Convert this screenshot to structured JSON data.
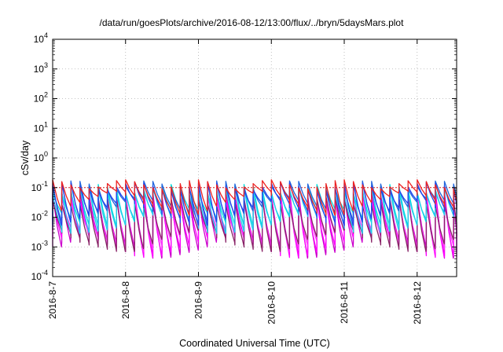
{
  "chart_data": {
    "type": "line",
    "title": "/data/run/goesPlots/archive/2016-08-12/13:00/flux/../bryn/5daysMars.plot",
    "xlabel": "Coordinated Universal Time (UTC)",
    "ylabel": "cSv/day",
    "yscale": "log",
    "ylim": [
      0.0001,
      10000
    ],
    "xlim": [
      "2016-08-07 00:00",
      "2016-08-12 13:00"
    ],
    "x_tick_labels": [
      "2016-8-7",
      "2016-8-8",
      "2016-8-9",
      "2016-8-10",
      "2016-8-11",
      "2016-8-12"
    ],
    "x_tick_days": [
      0,
      1,
      2,
      3,
      4,
      5
    ],
    "y_ticks": [
      {
        "base": "10",
        "exp": "-4",
        "value": 0.0001
      },
      {
        "base": "10",
        "exp": "-3",
        "value": 0.001
      },
      {
        "base": "10",
        "exp": "-2",
        "value": 0.01
      },
      {
        "base": "10",
        "exp": "-1",
        "value": 0.1
      },
      {
        "base": "10",
        "exp": "0",
        "value": 1
      },
      {
        "base": "10",
        "exp": "1",
        "value": 10
      },
      {
        "base": "10",
        "exp": "2",
        "value": 100
      },
      {
        "base": "10",
        "exp": "3",
        "value": 1000
      },
      {
        "base": "10",
        "exp": "4",
        "value": 10000
      }
    ],
    "grid": true,
    "reference_line": {
      "value": 0.1,
      "color": "#dd2222"
    },
    "cycle_hours": 3,
    "series": [
      {
        "color": "#cc00cc",
        "peak": 0.055,
        "trough": 0.001
      },
      {
        "color": "#ff00ff",
        "peak": 0.045,
        "trough": 0.0012
      },
      {
        "color": "#ff33ff",
        "peak": 0.04,
        "trough": 0.0018
      },
      {
        "color": "#882266",
        "peak": 0.035,
        "trough": 0.0016
      },
      {
        "color": "#00dddd",
        "peak": 0.09,
        "trough": 0.01
      },
      {
        "color": "#22ccee",
        "peak": 0.08,
        "trough": 0.006
      },
      {
        "color": "#2266dd",
        "peak": 0.12,
        "trough": 0.018
      },
      {
        "color": "#2244ee",
        "peak": 0.11,
        "trough": 0.014
      },
      {
        "color": "#ee2222",
        "peak": 0.13,
        "trough": 0.03
      }
    ]
  }
}
